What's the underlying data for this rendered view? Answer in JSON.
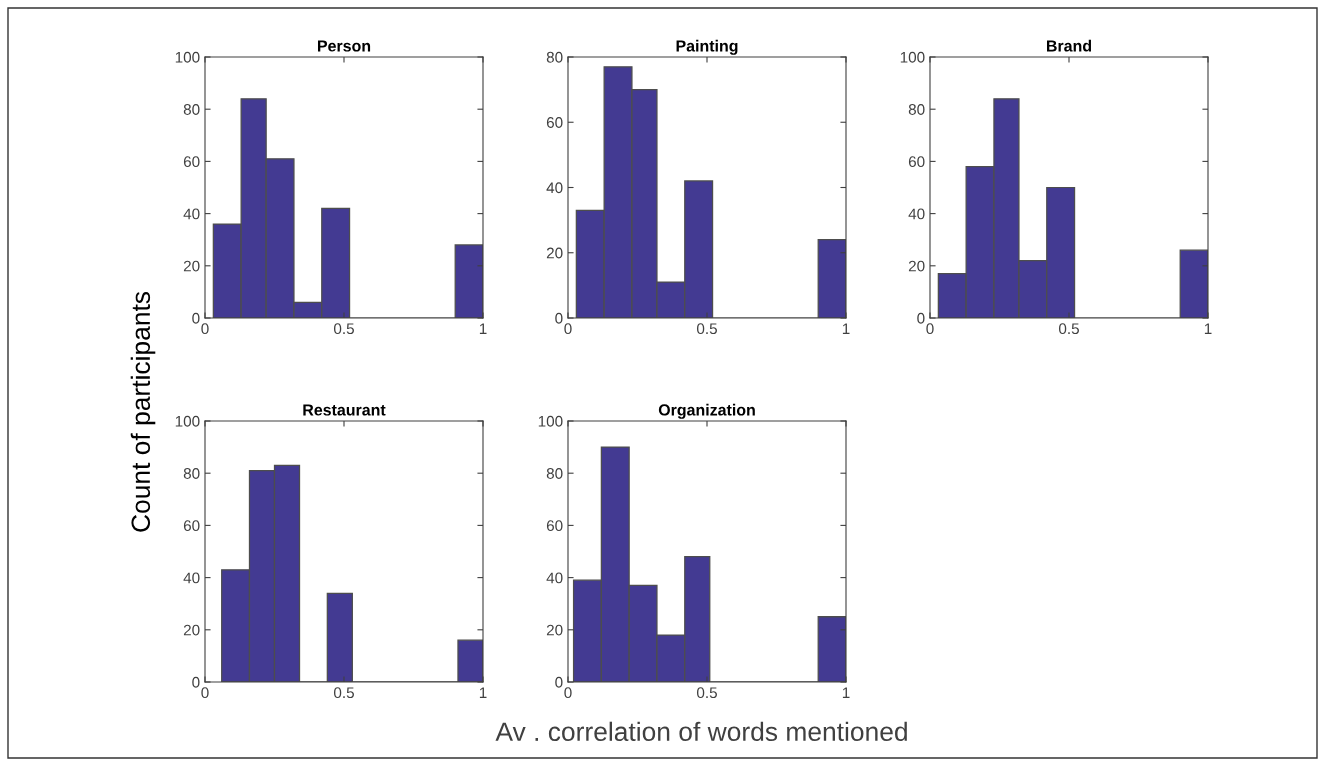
{
  "chart_data": [
    {
      "type": "histogram",
      "title": "Person",
      "ylabel": "Count of participants",
      "xlabel": "Av . correlation of words mentioned",
      "color": "#433a92",
      "bins": [
        0.03,
        0.13,
        0.22,
        0.32,
        0.42,
        0.52,
        0.9,
        1.0
      ],
      "values": [
        36,
        84,
        61,
        6,
        42,
        0,
        28
      ],
      "xlim": [
        0,
        1
      ],
      "xticks": [
        0,
        0.5,
        1
      ],
      "ylim": [
        0,
        100
      ],
      "yticks": [
        0,
        20,
        40,
        60,
        80,
        100
      ],
      "grid": false,
      "legend": false
    },
    {
      "type": "histogram",
      "title": "Painting",
      "color": "#433a92",
      "bins": [
        0.03,
        0.13,
        0.23,
        0.32,
        0.42,
        0.52,
        0.9,
        1.0
      ],
      "values": [
        33,
        77,
        70,
        11,
        42,
        0,
        24
      ],
      "xlim": [
        0,
        1
      ],
      "xticks": [
        0,
        0.5,
        1
      ],
      "ylim": [
        0,
        80
      ],
      "yticks": [
        0,
        20,
        40,
        60,
        80
      ],
      "grid": false,
      "legend": false
    },
    {
      "type": "histogram",
      "title": "Brand",
      "color": "#433a92",
      "bins": [
        0.03,
        0.13,
        0.23,
        0.32,
        0.42,
        0.52,
        0.9,
        1.0
      ],
      "values": [
        17,
        58,
        84,
        22,
        50,
        0,
        26
      ],
      "xlim": [
        0,
        1
      ],
      "xticks": [
        0,
        0.5,
        1
      ],
      "ylim": [
        0,
        100
      ],
      "yticks": [
        0,
        20,
        40,
        60,
        80,
        100
      ],
      "grid": false,
      "legend": false
    },
    {
      "type": "histogram",
      "title": "Restaurant",
      "color": "#433a92",
      "bins": [
        0.06,
        0.16,
        0.25,
        0.34,
        0.44,
        0.53,
        0.91,
        1.0
      ],
      "values": [
        43,
        81,
        83,
        0,
        34,
        0,
        16
      ],
      "xlim": [
        0,
        1
      ],
      "xticks": [
        0,
        0.5,
        1
      ],
      "ylim": [
        0,
        100
      ],
      "yticks": [
        0,
        20,
        40,
        60,
        80,
        100
      ],
      "grid": false,
      "legend": false
    },
    {
      "type": "histogram",
      "title": "Organization",
      "color": "#433a92",
      "bins": [
        0.02,
        0.12,
        0.22,
        0.32,
        0.42,
        0.51,
        0.9,
        1.0
      ],
      "values": [
        39,
        90,
        37,
        18,
        48,
        0,
        25
      ],
      "xlim": [
        0,
        1
      ],
      "xticks": [
        0,
        0.5,
        1
      ],
      "ylim": [
        0,
        100
      ],
      "yticks": [
        0,
        20,
        40,
        60,
        80,
        100
      ],
      "grid": false,
      "legend": false
    }
  ]
}
